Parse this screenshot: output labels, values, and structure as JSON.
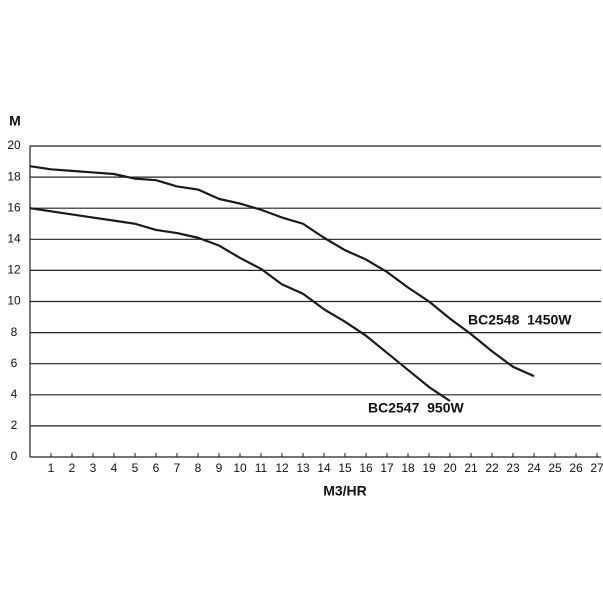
{
  "chart_data": {
    "type": "line",
    "x_label": "M3/HR",
    "y_label": "M",
    "x": [
      0,
      1,
      2,
      3,
      4,
      5,
      6,
      7,
      8,
      9,
      10,
      11,
      12,
      13,
      14,
      15,
      16,
      17,
      18,
      19,
      20,
      21,
      22,
      23,
      24
    ],
    "series": [
      {
        "name": "BC2548  1450W",
        "color": "#1a1a1a",
        "values": [
          18.7,
          18.5,
          18.4,
          18.3,
          18.2,
          17.9,
          17.8,
          17.4,
          17.2,
          16.6,
          16.3,
          15.9,
          15.4,
          15.0,
          14.1,
          13.3,
          12.7,
          11.9,
          10.9,
          10.0,
          8.9,
          7.9,
          6.8,
          5.8,
          5.2
        ]
      },
      {
        "name": "BC2547  950W",
        "color": "#1a1a1a",
        "values": [
          16.0,
          15.8,
          15.6,
          15.4,
          15.2,
          15.0,
          14.6,
          14.4,
          14.1,
          13.6,
          12.8,
          12.1,
          11.1,
          10.5,
          9.5,
          8.7,
          7.8,
          6.7,
          5.6,
          4.5,
          3.6,
          null,
          null,
          null,
          null
        ]
      }
    ],
    "xlim": [
      0,
      27
    ],
    "ylim": [
      0,
      20
    ],
    "xticks": [
      1,
      2,
      3,
      4,
      5,
      6,
      7,
      8,
      9,
      10,
      11,
      12,
      13,
      14,
      15,
      16,
      17,
      18,
      19,
      20,
      21,
      22,
      23,
      24,
      25,
      26,
      27
    ],
    "yticks": [
      0,
      2,
      4,
      6,
      8,
      10,
      12,
      14,
      16,
      18,
      20
    ],
    "grid": true
  }
}
